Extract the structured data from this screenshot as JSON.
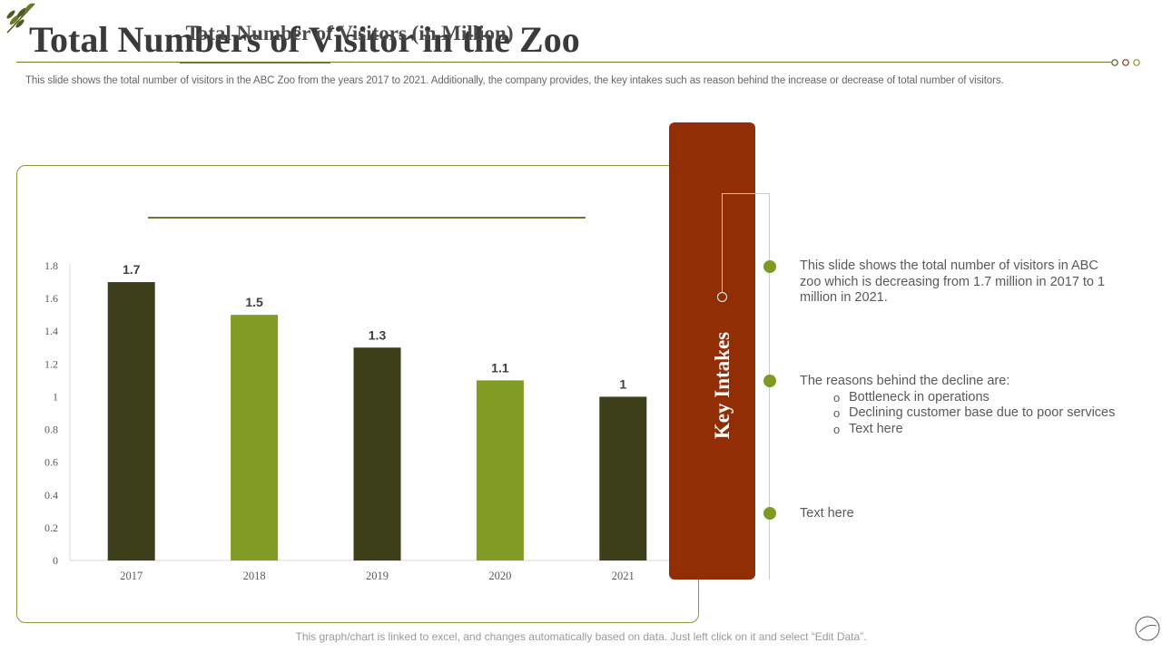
{
  "header": {
    "title": "Total Numbers of Visitor in the Zoo",
    "subtitle": "This slide shows the total number of visitors in the ABC Zoo from the years 2017 to 2021. Additionally, the company provides, the key intakes such as reason behind the increase or decrease of total number of visitors."
  },
  "chart_data": {
    "type": "bar",
    "title": "Total Number of Visitors (in Million)",
    "categories": [
      "2017",
      "2018",
      "2019",
      "2020",
      "2021"
    ],
    "values": [
      1.7,
      1.5,
      1.3,
      1.1,
      1
    ],
    "value_labels": [
      "1.7",
      "1.5",
      "1.3",
      "1.1",
      "1"
    ],
    "ylim": [
      0,
      1.8
    ],
    "yticks": [
      0,
      0.2,
      0.4,
      0.6,
      0.8,
      1,
      1.2,
      1.4,
      1.6,
      1.8
    ],
    "ytick_labels": [
      "0",
      "0.2",
      "0.4",
      "0.6",
      "0.8",
      "1",
      "1.2",
      "1.4",
      "1.6",
      "1.8"
    ],
    "xlabel": "",
    "ylabel": "",
    "grid": false,
    "bar_colors": [
      "#3d3f1a",
      "#829b22",
      "#3d3f1a",
      "#829b22",
      "#3d3f1a"
    ]
  },
  "key_intakes": {
    "label": "Key Intakes",
    "point1": "This slide shows the total number of visitors in ABC zoo which is decreasing from 1.7 million in 2017 to 1 million in 2021.",
    "point2": {
      "intro": "The reasons behind the decline are:",
      "items": [
        "Bottleneck in operations",
        "Declining customer base due to poor services",
        "Text here"
      ]
    },
    "point3": "Text here"
  },
  "footer": "This graph/chart is linked to excel, and changes automatically based on data. Just left click on it and select “Edit Data”.",
  "colors": {
    "accent_dark": "#3d3f1a",
    "accent_green": "#829b22",
    "key_intakes_bg": "#922e05"
  }
}
